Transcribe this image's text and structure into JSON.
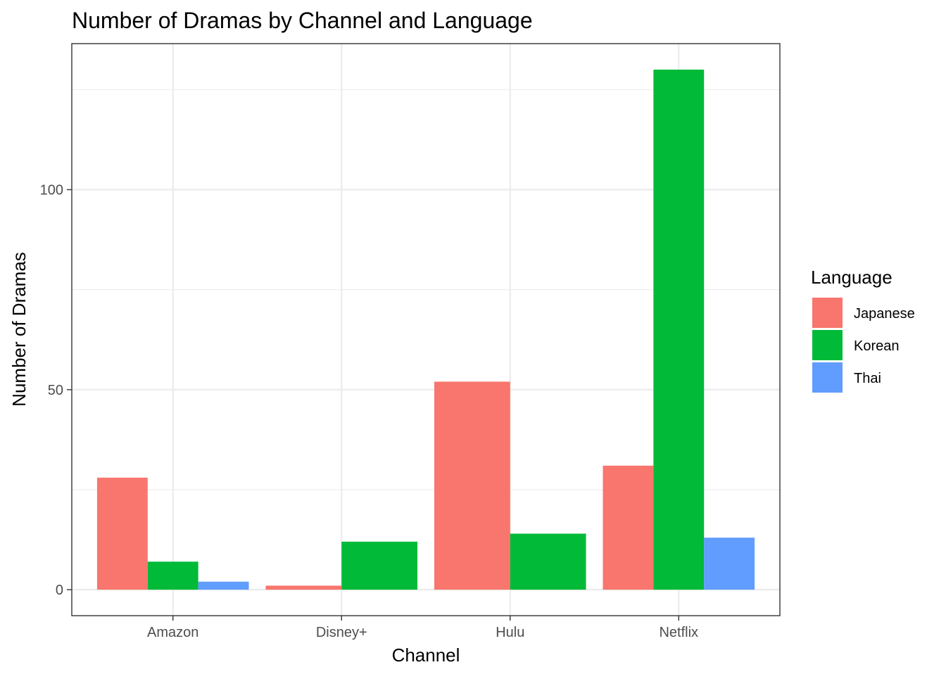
{
  "chart_data": {
    "type": "bar",
    "title": "Number of Dramas by Channel and Language",
    "xlabel": "Channel",
    "ylabel": "Number of Dramas",
    "categories": [
      "Amazon",
      "Disney+",
      "Hulu",
      "Netflix"
    ],
    "series": [
      {
        "name": "Japanese",
        "color": "#F8766D",
        "values": [
          28,
          1,
          52,
          31
        ]
      },
      {
        "name": "Korean",
        "color": "#00BA38",
        "values": [
          7,
          12,
          14,
          130
        ]
      },
      {
        "name": "Thai",
        "color": "#619CFF",
        "values": [
          2,
          null,
          null,
          13
        ]
      }
    ],
    "yticks": [
      0,
      50,
      100
    ],
    "ylim": [
      -6.5,
      136.5
    ],
    "grid": true,
    "legend": {
      "title": "Language",
      "position": "right"
    }
  }
}
